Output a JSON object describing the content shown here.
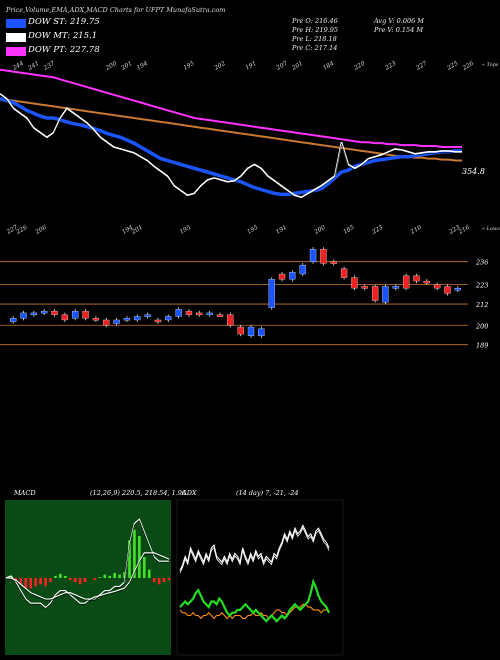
{
  "header": {
    "title": "Price,Volume,EMA,ADX,MACD Charts for UFPT MunafaSutra.com",
    "legend": [
      {
        "label": "DOW ST: 219.75",
        "color": "#1a55ff"
      },
      {
        "label": "DOW MT: 215.1",
        "color": "#ffffff"
      },
      {
        "label": "DOW PT: 227.78",
        "color": "#ff33ff"
      }
    ],
    "stats_left": [
      "Pre  O: 216.46",
      "Pre  H: 219.95",
      "Pre  L: 218.18",
      "Pre  C: 217.14"
    ],
    "stats_right": [
      "Avg V: 0.006  M",
      "Pre  V: 0.154  M"
    ]
  },
  "chart_data": [
    {
      "type": "line",
      "panel": "ema",
      "top_tick_labels": [
        "244",
        "241",
        "237",
        "",
        "",
        "",
        "200",
        "201",
        "194",
        "",
        "",
        "195",
        "",
        "202",
        "",
        "191",
        "",
        "207",
        "201",
        "",
        "184",
        "",
        "220",
        "",
        "223",
        "",
        "227",
        "",
        "225",
        "226"
      ],
      "right_label_top": "« Tops",
      "last_value_label": "354.8",
      "series": [
        {
          "color": "#ff33ff",
          "values": [
            470,
            469,
            468,
            467,
            466,
            465,
            464,
            463,
            462,
            460,
            458,
            456,
            454,
            452,
            450,
            448,
            446,
            444,
            442,
            440,
            438,
            436,
            434,
            432,
            430,
            428,
            426,
            424,
            422,
            420,
            419,
            418,
            417,
            416,
            415,
            414,
            413,
            412,
            411,
            410,
            409,
            408,
            407,
            406,
            405,
            404,
            403,
            402,
            401,
            400,
            399,
            398,
            397,
            396,
            395,
            395,
            394,
            394,
            393,
            393,
            392,
            392,
            392,
            391,
            391,
            391,
            390,
            390,
            390,
            390
          ]
        },
        {
          "color": "#c87830",
          "values": [
            440,
            439,
            438,
            437,
            436,
            435,
            434,
            433,
            432,
            431,
            430,
            429,
            428,
            427,
            426,
            425,
            424,
            423,
            422,
            421,
            420,
            419,
            418,
            417,
            416,
            415,
            414,
            413,
            412,
            411,
            410,
            409,
            408,
            407,
            406,
            405,
            404,
            403,
            402,
            401,
            400,
            399,
            398,
            397,
            396,
            395,
            394,
            393,
            392,
            391,
            390,
            389,
            388,
            387,
            386,
            385,
            384,
            383,
            382,
            381,
            380,
            380,
            379,
            379,
            378,
            378,
            377,
            377,
            376,
            376
          ]
        },
        {
          "color": "#1a55ff",
          "values": [
            440,
            438,
            436,
            432,
            428,
            425,
            422,
            420,
            420,
            418,
            416,
            414,
            413,
            411,
            409,
            407,
            404,
            402,
            400,
            397,
            394,
            390,
            386,
            382,
            378,
            376,
            374,
            372,
            370,
            368,
            366,
            364,
            362,
            360,
            358,
            356,
            354,
            351,
            348,
            346,
            344,
            342,
            341,
            341,
            342,
            343,
            344,
            345,
            347,
            352,
            358,
            364,
            366,
            370,
            372,
            374,
            376,
            377,
            378,
            379,
            380,
            380,
            381,
            382,
            383,
            384,
            385,
            385,
            386,
            386
          ]
        },
        {
          "color": "#ffffff",
          "values": [
            445,
            440,
            430,
            425,
            420,
            410,
            405,
            400,
            405,
            420,
            430,
            425,
            420,
            415,
            408,
            400,
            395,
            390,
            388,
            386,
            384,
            380,
            376,
            370,
            365,
            360,
            350,
            345,
            340,
            342,
            350,
            356,
            358,
            356,
            354,
            355,
            360,
            368,
            372,
            368,
            360,
            355,
            350,
            345,
            340,
            338,
            342,
            346,
            350,
            355,
            360,
            395,
            372,
            368,
            372,
            378,
            380,
            382,
            385,
            388,
            387,
            385,
            383,
            384,
            385,
            385,
            386,
            386,
            385,
            385
          ]
        }
      ]
    },
    {
      "type": "candlestick",
      "panel": "price",
      "top_tick_labels": [
        "227",
        "226",
        "",
        "206",
        "",
        "",
        "",
        "",
        "",
        "",
        "",
        "",
        "194",
        "201",
        "",
        "",
        "",
        "",
        "195",
        "",
        "",
        "",
        "",
        "",
        "",
        "195",
        "",
        "",
        "191",
        "",
        "",
        "",
        "200",
        "",
        "",
        "185",
        "",
        "",
        "223",
        "",
        "",
        "",
        "210",
        "",
        "",
        "",
        "223",
        "216"
      ],
      "right_label_top": "« Lows",
      "price_levels": [
        236,
        223,
        212,
        200,
        189
      ],
      "candles": [
        {
          "o": 202,
          "c": 204,
          "up": true
        },
        {
          "o": 204,
          "c": 207,
          "up": true
        },
        {
          "o": 206,
          "c": 207,
          "up": true
        },
        {
          "o": 207,
          "c": 208,
          "up": true
        },
        {
          "o": 206,
          "c": 208,
          "up": false
        },
        {
          "o": 206,
          "c": 203,
          "up": false
        },
        {
          "o": 204,
          "c": 208,
          "up": true
        },
        {
          "o": 208,
          "c": 204,
          "up": false
        },
        {
          "o": 204,
          "c": 203,
          "up": false
        },
        {
          "o": 203,
          "c": 200,
          "up": false
        },
        {
          "o": 201,
          "c": 203,
          "up": true
        },
        {
          "o": 203,
          "c": 204,
          "up": true
        },
        {
          "o": 203,
          "c": 205,
          "up": true
        },
        {
          "o": 205,
          "c": 206,
          "up": true
        },
        {
          "o": 203,
          "c": 202,
          "up": false
        },
        {
          "o": 203,
          "c": 205,
          "up": true
        },
        {
          "o": 205,
          "c": 209,
          "up": true
        },
        {
          "o": 208,
          "c": 206,
          "up": false
        },
        {
          "o": 207,
          "c": 206,
          "up": false
        },
        {
          "o": 206,
          "c": 207,
          "up": true
        },
        {
          "o": 206,
          "c": 206,
          "up": false
        },
        {
          "o": 206,
          "c": 200,
          "up": false
        },
        {
          "o": 199,
          "c": 195,
          "up": false
        },
        {
          "o": 194,
          "c": 199,
          "up": true
        },
        {
          "o": 194,
          "c": 198,
          "up": true
        },
        {
          "o": 210,
          "c": 226,
          "up": true
        },
        {
          "o": 229,
          "c": 226,
          "up": false
        },
        {
          "o": 226,
          "c": 230,
          "up": true
        },
        {
          "o": 229,
          "c": 234,
          "up": true
        },
        {
          "o": 236,
          "c": 243,
          "up": true
        },
        {
          "o": 243,
          "c": 235,
          "up": false
        },
        {
          "o": 236,
          "c": 235,
          "up": false
        },
        {
          "o": 232,
          "c": 227,
          "up": false
        },
        {
          "o": 227,
          "c": 221,
          "up": false
        },
        {
          "o": 222,
          "c": 221,
          "up": false
        },
        {
          "o": 222,
          "c": 214,
          "up": false
        },
        {
          "o": 213,
          "c": 222,
          "up": true
        },
        {
          "o": 222,
          "c": 221,
          "up": true
        },
        {
          "o": 228,
          "c": 221,
          "up": false
        },
        {
          "o": 228,
          "c": 225,
          "up": false
        },
        {
          "o": 225,
          "c": 224,
          "up": false
        },
        {
          "o": 221,
          "c": 223,
          "up": false
        },
        {
          "o": 222,
          "c": 218,
          "up": false
        },
        {
          "o": 221,
          "c": 220,
          "up": true
        }
      ]
    },
    {
      "type": "line",
      "panel": "macd",
      "label": "MACD",
      "params": "(12,26,9) 220.5,  218.54,  1.96",
      "series": [
        {
          "color": "#ffffff",
          "values": [
            0,
            0.5,
            -1,
            -3,
            -5,
            -6,
            -6,
            -6,
            -7,
            -6,
            -4,
            -3,
            -3,
            -4,
            -5,
            -6,
            -6,
            -5,
            -5,
            -4,
            -3,
            -3,
            -2,
            -2,
            -1,
            8,
            13,
            14,
            11,
            8,
            5,
            4,
            4,
            4
          ]
        },
        {
          "color": "#ffffff",
          "values": [
            0,
            0,
            -0.5,
            -1.5,
            -2.5,
            -3.5,
            -4,
            -4.5,
            -5,
            -5,
            -4.5,
            -4,
            -3.5,
            -3.5,
            -4,
            -4.5,
            -5,
            -5,
            -4.5,
            -4.2,
            -3.8,
            -3.5,
            -3.2,
            -2.8,
            -2.4,
            -1,
            1.5,
            4,
            6,
            6,
            6,
            5.5,
            5,
            4.5
          ]
        }
      ],
      "histogram_up_color": "#44e02b",
      "histogram_down_color": "#ff2222"
    },
    {
      "type": "line",
      "panel": "adx",
      "label": "ADX",
      "params": "(14  day) 7,  -21,  -24",
      "series": [
        {
          "color": "#ffffff",
          "values": [
            30,
            32,
            35,
            33,
            38,
            36,
            34,
            37,
            35,
            33,
            36,
            34,
            38,
            39,
            35,
            34,
            33,
            35,
            33,
            36,
            34,
            36,
            35,
            33,
            38,
            35,
            33,
            36,
            34,
            37,
            35,
            36,
            33,
            35,
            34,
            33,
            36,
            35,
            38,
            40,
            43,
            41,
            44,
            42,
            45,
            43,
            44,
            46,
            44,
            42,
            43,
            41,
            44,
            45,
            43,
            41,
            40,
            38
          ]
        },
        {
          "color": "#ff8c1a",
          "values": [
            16,
            15,
            15,
            14,
            14,
            15,
            14,
            14,
            13,
            14,
            14,
            15,
            14,
            13,
            14,
            14,
            15,
            14,
            13,
            14,
            13,
            14,
            14,
            14,
            13,
            13,
            14,
            14,
            15,
            14,
            14,
            15,
            14,
            14,
            13,
            14,
            15,
            16,
            16,
            15,
            15,
            14,
            15,
            16,
            17,
            17,
            17,
            18,
            18,
            17,
            17,
            16,
            16,
            16,
            15,
            16,
            16,
            15
          ]
        },
        {
          "color": "#22dd22",
          "values": [
            17,
            18,
            19,
            18,
            19,
            20,
            22,
            23,
            21,
            19,
            18,
            17,
            19,
            19,
            18,
            20,
            19,
            17,
            15,
            14,
            15,
            15,
            16,
            16,
            17,
            18,
            17,
            16,
            15,
            16,
            15,
            14,
            13,
            12,
            13,
            14,
            13,
            12,
            13,
            14,
            13,
            14,
            16,
            17,
            18,
            17,
            16,
            17,
            18,
            19,
            22,
            26,
            24,
            21,
            19,
            18,
            17,
            15
          ]
        }
      ]
    }
  ]
}
